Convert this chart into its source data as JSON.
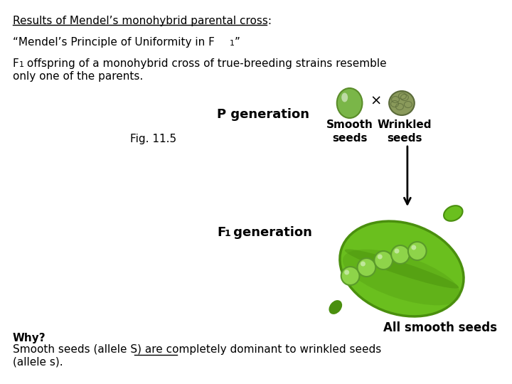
{
  "background_color": "#ffffff",
  "title_line1": "Results of Mendel’s monohybrid parental cross:",
  "title_line2": "“Mendel’s Principle of Uniformity in F",
  "title_line2_sub": "1",
  "title_line2_end": "”",
  "body_line1": "F",
  "body_line1_sub": "1",
  "body_line1_rest": " offspring of a monohybrid cross of true-breeding strains resemble",
  "body_line2": "only one of the parents.",
  "fig_label": "Fig. 11.5",
  "p_gen_label": "P generation",
  "f1_gen_label": "F",
  "f1_gen_sub": "1",
  "f1_gen_rest": " generation",
  "smooth_label": "Smooth\nseeds",
  "wrinkled_label": "Wrinkled\nseeds",
  "all_smooth_label": "All smooth seeds",
  "why_line1": "Why?",
  "why_line2_pre": "Smooth seeds (allele S) are ",
  "why_line2_underlined": "completely",
  "why_line2_post": " dominant to wrinkled seeds",
  "why_line3": "(allele s).",
  "smooth_seed_color": "#7ab648",
  "smooth_seed_dark": "#5a8c2a",
  "wrinkled_seed_color": "#8a9a5b",
  "wrinkled_seed_dark": "#5a6a3a",
  "pod_green": "#6abf1e",
  "pod_dark": "#4a8f0e",
  "pea_light": "#8ed44a",
  "pea_dark": "#5a9a2a",
  "arrow_color": "#000000",
  "cross_symbol": "×"
}
